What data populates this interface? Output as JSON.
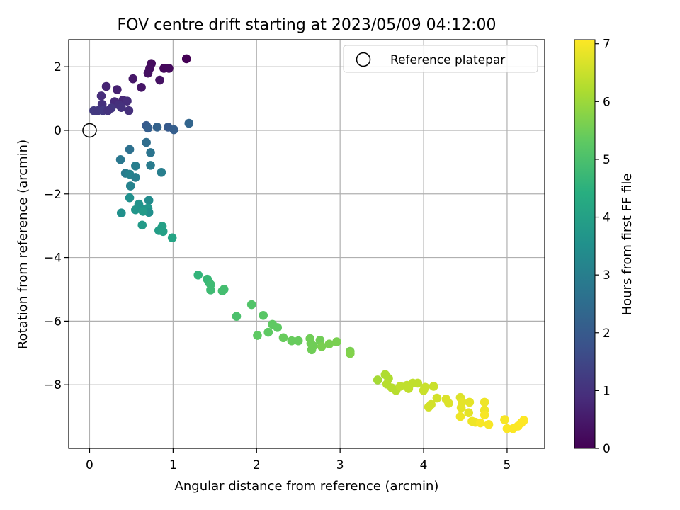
{
  "chart_data": {
    "type": "scatter",
    "title": "FOV centre drift starting at 2023/05/09 04:12:00",
    "xlabel": "Angular distance from reference (arcmin)",
    "ylabel": "Rotation from reference (arcmin)",
    "xlim": [
      -0.25,
      5.45
    ],
    "ylim": [
      -10.0,
      2.85
    ],
    "xticks": [
      0,
      1,
      2,
      3,
      4,
      5
    ],
    "yticks": [
      -8,
      -6,
      -4,
      -2,
      0,
      2
    ],
    "grid": true,
    "legend": {
      "position": "top-right",
      "entries": [
        "Reference platepar"
      ]
    },
    "reference_point": {
      "x": 0,
      "y": 0,
      "label": "Reference platepar"
    },
    "colorbar": {
      "label": "Hours from first FF file",
      "colormap": "viridis",
      "range": [
        0,
        7.07
      ],
      "ticks": [
        0,
        1,
        2,
        3,
        4,
        5,
        6,
        7
      ]
    },
    "points": [
      {
        "x": 1.16,
        "y": 2.25,
        "h": 0.0
      },
      {
        "x": 0.74,
        "y": 2.1,
        "h": 0.2
      },
      {
        "x": 0.72,
        "y": 1.95,
        "h": 0.25
      },
      {
        "x": 0.89,
        "y": 1.95,
        "h": 0.15
      },
      {
        "x": 0.95,
        "y": 1.95,
        "h": 0.18
      },
      {
        "x": 0.7,
        "y": 1.8,
        "h": 0.3
      },
      {
        "x": 0.52,
        "y": 1.62,
        "h": 0.45
      },
      {
        "x": 0.84,
        "y": 1.58,
        "h": 0.35
      },
      {
        "x": 0.62,
        "y": 1.35,
        "h": 0.4
      },
      {
        "x": 0.2,
        "y": 1.38,
        "h": 0.7
      },
      {
        "x": 0.33,
        "y": 1.28,
        "h": 0.65
      },
      {
        "x": 0.14,
        "y": 1.08,
        "h": 0.9
      },
      {
        "x": 0.3,
        "y": 0.9,
        "h": 0.85
      },
      {
        "x": 0.4,
        "y": 0.95,
        "h": 0.8
      },
      {
        "x": 0.45,
        "y": 0.92,
        "h": 0.9
      },
      {
        "x": 0.15,
        "y": 0.82,
        "h": 1.0
      },
      {
        "x": 0.35,
        "y": 0.8,
        "h": 0.95
      },
      {
        "x": 0.38,
        "y": 0.72,
        "h": 1.0
      },
      {
        "x": 0.26,
        "y": 0.7,
        "h": 1.1
      },
      {
        "x": 0.05,
        "y": 0.62,
        "h": 1.2
      },
      {
        "x": 0.1,
        "y": 0.62,
        "h": 1.15
      },
      {
        "x": 0.16,
        "y": 0.62,
        "h": 1.2
      },
      {
        "x": 0.22,
        "y": 0.62,
        "h": 1.05
      },
      {
        "x": 0.47,
        "y": 0.62,
        "h": 0.95
      },
      {
        "x": 0.68,
        "y": 0.15,
        "h": 2.0
      },
      {
        "x": 0.7,
        "y": 0.07,
        "h": 2.1
      },
      {
        "x": 0.81,
        "y": 0.1,
        "h": 2.2
      },
      {
        "x": 0.94,
        "y": 0.1,
        "h": 2.0
      },
      {
        "x": 1.01,
        "y": 0.02,
        "h": 2.1
      },
      {
        "x": 1.19,
        "y": 0.22,
        "h": 2.3
      },
      {
        "x": 0.68,
        "y": -0.38,
        "h": 2.5
      },
      {
        "x": 0.48,
        "y": -0.6,
        "h": 2.6
      },
      {
        "x": 0.73,
        "y": -0.7,
        "h": 2.7
      },
      {
        "x": 0.37,
        "y": -0.92,
        "h": 2.8
      },
      {
        "x": 0.73,
        "y": -1.1,
        "h": 2.9
      },
      {
        "x": 0.55,
        "y": -1.12,
        "h": 3.0
      },
      {
        "x": 0.86,
        "y": -1.32,
        "h": 3.0
      },
      {
        "x": 0.43,
        "y": -1.35,
        "h": 2.9
      },
      {
        "x": 0.48,
        "y": -1.38,
        "h": 3.1
      },
      {
        "x": 0.55,
        "y": -1.48,
        "h": 3.0
      },
      {
        "x": 0.49,
        "y": -1.75,
        "h": 3.1
      },
      {
        "x": 0.48,
        "y": -2.12,
        "h": 3.5
      },
      {
        "x": 0.71,
        "y": -2.2,
        "h": 3.4
      },
      {
        "x": 0.59,
        "y": -2.32,
        "h": 3.6
      },
      {
        "x": 0.55,
        "y": -2.5,
        "h": 3.7
      },
      {
        "x": 0.62,
        "y": -2.48,
        "h": 3.6
      },
      {
        "x": 0.7,
        "y": -2.45,
        "h": 3.7
      },
      {
        "x": 0.71,
        "y": -2.58,
        "h": 3.5
      },
      {
        "x": 0.64,
        "y": -2.55,
        "h": 3.8
      },
      {
        "x": 0.38,
        "y": -2.6,
        "h": 3.5
      },
      {
        "x": 0.63,
        "y": -2.98,
        "h": 3.8
      },
      {
        "x": 0.87,
        "y": -3.02,
        "h": 4.0
      },
      {
        "x": 0.83,
        "y": -3.15,
        "h": 3.9
      },
      {
        "x": 0.88,
        "y": -3.18,
        "h": 4.0
      },
      {
        "x": 0.99,
        "y": -3.38,
        "h": 4.1
      },
      {
        "x": 1.3,
        "y": -4.55,
        "h": 4.6
      },
      {
        "x": 1.41,
        "y": -4.68,
        "h": 4.7
      },
      {
        "x": 1.43,
        "y": -4.78,
        "h": 4.7
      },
      {
        "x": 1.45,
        "y": -4.85,
        "h": 4.8
      },
      {
        "x": 1.45,
        "y": -5.02,
        "h": 4.8
      },
      {
        "x": 1.59,
        "y": -5.05,
        "h": 4.9
      },
      {
        "x": 1.61,
        "y": -5.0,
        "h": 4.9
      },
      {
        "x": 1.94,
        "y": -5.48,
        "h": 5.1
      },
      {
        "x": 1.76,
        "y": -5.85,
        "h": 5.0
      },
      {
        "x": 2.08,
        "y": -5.82,
        "h": 5.2
      },
      {
        "x": 2.19,
        "y": -6.1,
        "h": 5.3
      },
      {
        "x": 2.25,
        "y": -6.2,
        "h": 5.3
      },
      {
        "x": 2.14,
        "y": -6.35,
        "h": 5.3
      },
      {
        "x": 2.01,
        "y": -6.45,
        "h": 5.3
      },
      {
        "x": 2.32,
        "y": -6.52,
        "h": 5.4
      },
      {
        "x": 2.42,
        "y": -6.62,
        "h": 5.4
      },
      {
        "x": 2.5,
        "y": -6.62,
        "h": 5.4
      },
      {
        "x": 2.64,
        "y": -6.55,
        "h": 5.5
      },
      {
        "x": 2.65,
        "y": -6.7,
        "h": 5.5
      },
      {
        "x": 2.68,
        "y": -6.78,
        "h": 5.5
      },
      {
        "x": 2.66,
        "y": -6.9,
        "h": 5.5
      },
      {
        "x": 2.76,
        "y": -6.6,
        "h": 5.5
      },
      {
        "x": 2.78,
        "y": -6.8,
        "h": 5.6
      },
      {
        "x": 2.87,
        "y": -6.72,
        "h": 5.6
      },
      {
        "x": 2.96,
        "y": -6.65,
        "h": 5.6
      },
      {
        "x": 3.12,
        "y": -6.95,
        "h": 5.6
      },
      {
        "x": 3.12,
        "y": -7.02,
        "h": 5.7
      },
      {
        "x": 3.45,
        "y": -7.85,
        "h": 6.1
      },
      {
        "x": 3.54,
        "y": -7.68,
        "h": 6.2
      },
      {
        "x": 3.58,
        "y": -7.8,
        "h": 6.2
      },
      {
        "x": 3.56,
        "y": -7.98,
        "h": 6.3
      },
      {
        "x": 3.62,
        "y": -8.1,
        "h": 6.3
      },
      {
        "x": 3.67,
        "y": -8.18,
        "h": 6.3
      },
      {
        "x": 3.72,
        "y": -8.05,
        "h": 6.4
      },
      {
        "x": 3.8,
        "y": -8.02,
        "h": 6.4
      },
      {
        "x": 3.82,
        "y": -8.12,
        "h": 6.4
      },
      {
        "x": 3.87,
        "y": -7.95,
        "h": 6.4
      },
      {
        "x": 3.93,
        "y": -7.95,
        "h": 6.4
      },
      {
        "x": 4.0,
        "y": -8.18,
        "h": 6.5
      },
      {
        "x": 4.02,
        "y": -8.08,
        "h": 6.5
      },
      {
        "x": 4.12,
        "y": -8.05,
        "h": 6.5
      },
      {
        "x": 4.06,
        "y": -8.7,
        "h": 6.6
      },
      {
        "x": 4.09,
        "y": -8.62,
        "h": 6.6
      },
      {
        "x": 4.16,
        "y": -8.42,
        "h": 6.6
      },
      {
        "x": 4.27,
        "y": -8.45,
        "h": 6.7
      },
      {
        "x": 4.3,
        "y": -8.58,
        "h": 6.7
      },
      {
        "x": 4.44,
        "y": -8.4,
        "h": 6.7
      },
      {
        "x": 4.46,
        "y": -8.55,
        "h": 6.8
      },
      {
        "x": 4.45,
        "y": -8.72,
        "h": 6.8
      },
      {
        "x": 4.55,
        "y": -8.55,
        "h": 6.8
      },
      {
        "x": 4.54,
        "y": -8.88,
        "h": 6.8
      },
      {
        "x": 4.44,
        "y": -9.0,
        "h": 6.9
      },
      {
        "x": 4.58,
        "y": -9.15,
        "h": 6.9
      },
      {
        "x": 4.62,
        "y": -9.18,
        "h": 6.9
      },
      {
        "x": 4.68,
        "y": -9.2,
        "h": 7.0
      },
      {
        "x": 4.73,
        "y": -8.55,
        "h": 6.9
      },
      {
        "x": 4.73,
        "y": -8.8,
        "h": 6.9
      },
      {
        "x": 4.73,
        "y": -8.95,
        "h": 7.0
      },
      {
        "x": 4.78,
        "y": -9.25,
        "h": 7.0
      },
      {
        "x": 4.97,
        "y": -9.1,
        "h": 7.0
      },
      {
        "x": 5.0,
        "y": -9.38,
        "h": 7.05
      },
      {
        "x": 5.07,
        "y": -9.38,
        "h": 7.05
      },
      {
        "x": 5.13,
        "y": -9.3,
        "h": 7.05
      },
      {
        "x": 5.17,
        "y": -9.2,
        "h": 7.07
      },
      {
        "x": 5.2,
        "y": -9.12,
        "h": 7.07
      }
    ]
  }
}
